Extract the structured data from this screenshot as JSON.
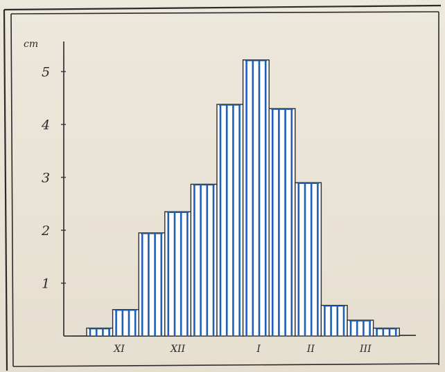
{
  "chart_data": {
    "type": "bar",
    "ylabel": "cm",
    "ylim": [
      0,
      5.6
    ],
    "yticks": [
      "1",
      "2",
      "3",
      "4",
      "5"
    ],
    "values": [
      0.15,
      0.5,
      1.95,
      2.35,
      2.87,
      4.38,
      5.22,
      4.3,
      2.9,
      0.58,
      0.3,
      0.15
    ],
    "x_tick_labels": [
      {
        "label": "XI",
        "position": 1.25
      },
      {
        "label": "XII",
        "position": 3.5
      },
      {
        "label": "I",
        "position": 6.6
      },
      {
        "label": "II",
        "position": 8.6
      },
      {
        "label": "III",
        "position": 10.7
      }
    ],
    "bar_fill": "#ffffff",
    "stripe_color": "#1f5fb5",
    "outline_color": "#2b2b2b"
  }
}
